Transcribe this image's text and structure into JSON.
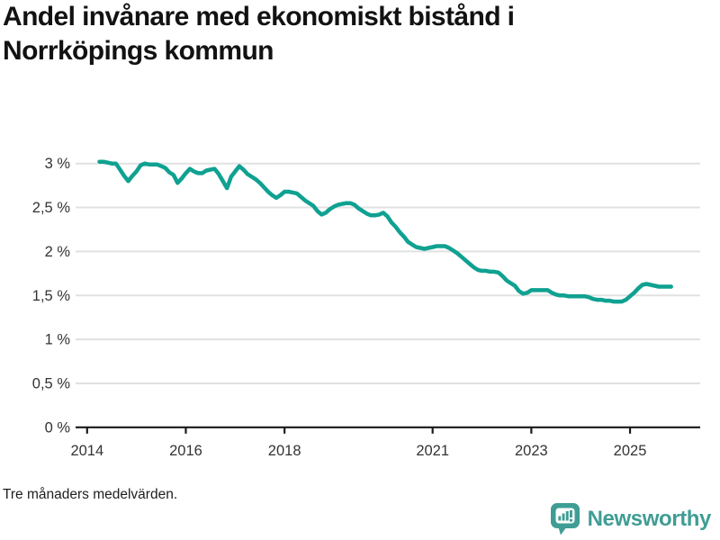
{
  "title": "Andel invånare med ekonomiskt bistånd i Norrköpings kommun",
  "footnote": "Tre månaders medelvärden.",
  "logo": {
    "text": "Newsworthy",
    "icon": "bar-chart-speech-bubble"
  },
  "colors": {
    "line": "#0fa191",
    "grid": "#e1e1e1",
    "axis": "#1a1a1a",
    "tick_text": "#333333",
    "title_text": "#121212",
    "logo": "#3f9d95",
    "background": "#ffffff"
  },
  "chart_data": {
    "type": "line",
    "title": "Andel invånare med ekonomiskt bistånd i Norrköpings kommun",
    "xlabel": "",
    "ylabel": "",
    "unit": "%",
    "grid": "horizontal",
    "legend": "none",
    "ylim": [
      0,
      3.25
    ],
    "xlim_years": [
      2013.77,
      2026.42
    ],
    "y_ticks": [
      {
        "value": 3.0,
        "label": "3 %"
      },
      {
        "value": 2.5,
        "label": "2,5 %"
      },
      {
        "value": 2.0,
        "label": "2 %"
      },
      {
        "value": 1.5,
        "label": "1,5 %"
      },
      {
        "value": 1.0,
        "label": "1 %"
      },
      {
        "value": 0.5,
        "label": "0,5 %"
      },
      {
        "value": 0.0,
        "label": "0 %"
      }
    ],
    "x_ticks": [
      {
        "year": 2014,
        "label": "2014"
      },
      {
        "year": 2016,
        "label": "2016"
      },
      {
        "year": 2018,
        "label": "2018"
      },
      {
        "year": 2021,
        "label": "2021"
      },
      {
        "year": 2023,
        "label": "2023"
      },
      {
        "year": 2025,
        "label": "2025"
      }
    ],
    "series": [
      {
        "name": "Andel invånare med ekonomiskt bistånd",
        "start": "2014-04",
        "interval": "monthly",
        "values": [
          3.02,
          3.02,
          3.01,
          3.0,
          3.0,
          2.93,
          2.86,
          2.8,
          2.86,
          2.91,
          2.98,
          3.0,
          2.99,
          2.99,
          2.99,
          2.97,
          2.95,
          2.9,
          2.87,
          2.78,
          2.83,
          2.89,
          2.94,
          2.91,
          2.89,
          2.89,
          2.92,
          2.93,
          2.94,
          2.88,
          2.8,
          2.72,
          2.85,
          2.91,
          2.97,
          2.93,
          2.88,
          2.85,
          2.82,
          2.78,
          2.73,
          2.68,
          2.64,
          2.61,
          2.64,
          2.68,
          2.68,
          2.67,
          2.66,
          2.62,
          2.58,
          2.55,
          2.52,
          2.46,
          2.42,
          2.44,
          2.48,
          2.51,
          2.53,
          2.54,
          2.55,
          2.55,
          2.53,
          2.49,
          2.46,
          2.43,
          2.41,
          2.41,
          2.42,
          2.44,
          2.4,
          2.33,
          2.28,
          2.22,
          2.17,
          2.11,
          2.08,
          2.05,
          2.04,
          2.03,
          2.04,
          2.05,
          2.06,
          2.06,
          2.06,
          2.04,
          2.01,
          1.98,
          1.94,
          1.9,
          1.86,
          1.82,
          1.79,
          1.78,
          1.78,
          1.77,
          1.77,
          1.76,
          1.72,
          1.67,
          1.64,
          1.61,
          1.55,
          1.52,
          1.53,
          1.56,
          1.56,
          1.56,
          1.56,
          1.56,
          1.53,
          1.51,
          1.5,
          1.5,
          1.49,
          1.49,
          1.49,
          1.49,
          1.49,
          1.48,
          1.46,
          1.45,
          1.45,
          1.44,
          1.44,
          1.43,
          1.43,
          1.43,
          1.45,
          1.49,
          1.53,
          1.58,
          1.62,
          1.63,
          1.62,
          1.61,
          1.6,
          1.6,
          1.6,
          1.6
        ]
      }
    ]
  }
}
